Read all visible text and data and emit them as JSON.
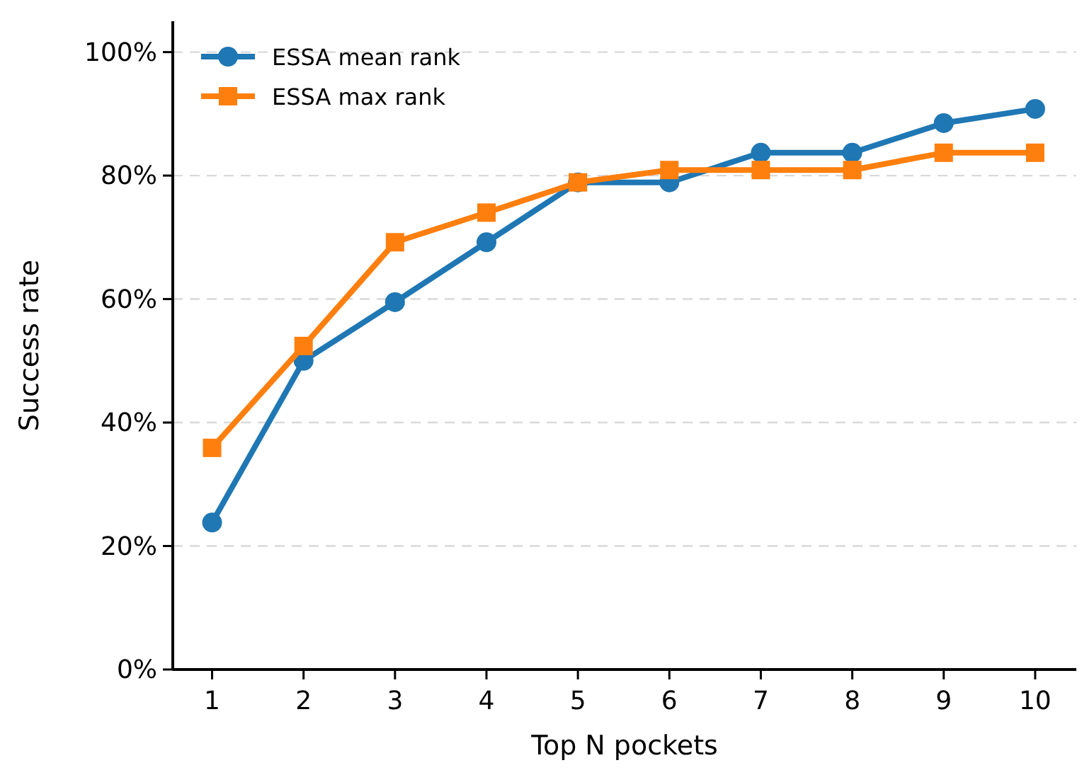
{
  "chart_data": {
    "type": "line",
    "xlabel": "Top N pockets",
    "ylabel": "Success rate",
    "x": [
      1,
      2,
      3,
      4,
      5,
      6,
      7,
      8,
      9,
      10
    ],
    "series": [
      {
        "name": "ESSA mean rank",
        "color": "#1f77b4",
        "marker": "circle",
        "values": [
          23.8,
          50,
          59.5,
          69.2,
          78.9,
          78.9,
          83.7,
          83.7,
          88.5,
          90.8
        ]
      },
      {
        "name": "ESSA max rank",
        "color": "#ff7f0e",
        "marker": "square",
        "values": [
          35.9,
          52.4,
          69.2,
          74,
          78.9,
          80.9,
          80.9,
          80.9,
          83.7,
          83.7
        ]
      }
    ],
    "xlim": [
      0.57,
      10.45
    ],
    "ylim": [
      0,
      105
    ],
    "xticks": [
      1,
      2,
      3,
      4,
      5,
      6,
      7,
      8,
      9,
      10
    ],
    "yticks": [
      {
        "value": 0,
        "label": "0%"
      },
      {
        "value": 20,
        "label": "20%"
      },
      {
        "value": 40,
        "label": "40%"
      },
      {
        "value": 60,
        "label": "60%"
      },
      {
        "value": 80,
        "label": "80%"
      },
      {
        "value": 100,
        "label": "100%"
      }
    ],
    "grid": "y",
    "legend": "top left",
    "line_style": "solid"
  }
}
